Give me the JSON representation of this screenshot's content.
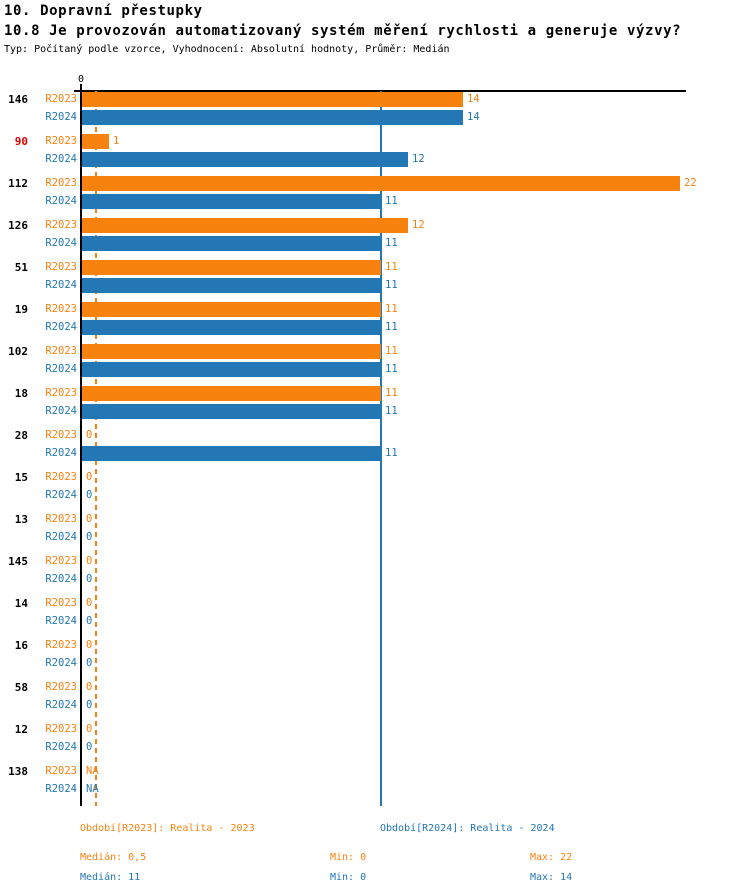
{
  "header": {
    "title": "10. Dopravní přestupky",
    "subtitle": "10.8 Je provozován automatizovaný systém měření rychlosti a generuje výzvy?",
    "meta": "Typ: Počítaný podle vzorce, Vyhodnocení: Absolutní hodnoty, Průměr: Medián"
  },
  "chart_data": {
    "type": "bar",
    "orientation": "horizontal",
    "title": "10.8 Je provozován automatizovaný systém měření rychlosti a generuje výzvy?",
    "axis": {
      "zero_label": "0",
      "xlim": [
        0,
        22.3
      ],
      "grid": false
    },
    "series_labels": {
      "r2023": "R2023",
      "r2024": "R2024"
    },
    "colors": {
      "r2023": "#F8820E",
      "r2024": "#2277B4",
      "highlight_id": "#DD0000",
      "axis": "#000000"
    },
    "reference_lines": [
      {
        "series": "r2023",
        "value": 0.5,
        "style": "dashed",
        "color": "#F8820E"
      },
      {
        "series": "r2024",
        "value": 11,
        "style": "solid",
        "color": "#2277B4"
      }
    ],
    "rows": [
      {
        "id": "146",
        "highlight": false,
        "r2023": 14,
        "r2024": 14
      },
      {
        "id": "90",
        "highlight": true,
        "r2023": 1,
        "r2024": 12
      },
      {
        "id": "112",
        "highlight": false,
        "r2023": 22,
        "r2024": 11
      },
      {
        "id": "126",
        "highlight": false,
        "r2023": 12,
        "r2024": 11
      },
      {
        "id": "51",
        "highlight": false,
        "r2023": 11,
        "r2024": 11
      },
      {
        "id": "19",
        "highlight": false,
        "r2023": 11,
        "r2024": 11
      },
      {
        "id": "102",
        "highlight": false,
        "r2023": 11,
        "r2024": 11
      },
      {
        "id": "18",
        "highlight": false,
        "r2023": 11,
        "r2024": 11
      },
      {
        "id": "28",
        "highlight": false,
        "r2023": 0,
        "r2024": 11
      },
      {
        "id": "15",
        "highlight": false,
        "r2023": 0,
        "r2024": 0
      },
      {
        "id": "13",
        "highlight": false,
        "r2023": 0,
        "r2024": 0
      },
      {
        "id": "145",
        "highlight": false,
        "r2023": 0,
        "r2024": 0
      },
      {
        "id": "14",
        "highlight": false,
        "r2023": 0,
        "r2024": 0
      },
      {
        "id": "16",
        "highlight": false,
        "r2023": 0,
        "r2024": 0
      },
      {
        "id": "58",
        "highlight": false,
        "r2023": 0,
        "r2024": 0
      },
      {
        "id": "12",
        "highlight": false,
        "r2023": 0,
        "r2024": 0
      },
      {
        "id": "138",
        "highlight": false,
        "r2023": "NA",
        "r2024": "NA"
      }
    ],
    "stats": {
      "r2023": {
        "median": 0.5,
        "min": 0,
        "max": 22
      },
      "r2024": {
        "median": 11,
        "min": 0,
        "max": 14
      }
    }
  },
  "footer": {
    "period_r2023": "Období[R2023]: Realita - 2023",
    "period_r2024": "Období[R2024]: Realita - 2024",
    "r2023_median": "Medián: 0,5",
    "r2023_min": "Min: 0",
    "r2023_max": "Max: 22",
    "r2024_median": "Medián: 11",
    "r2024_min": "Min: 0",
    "r2024_max": "Max: 14"
  }
}
